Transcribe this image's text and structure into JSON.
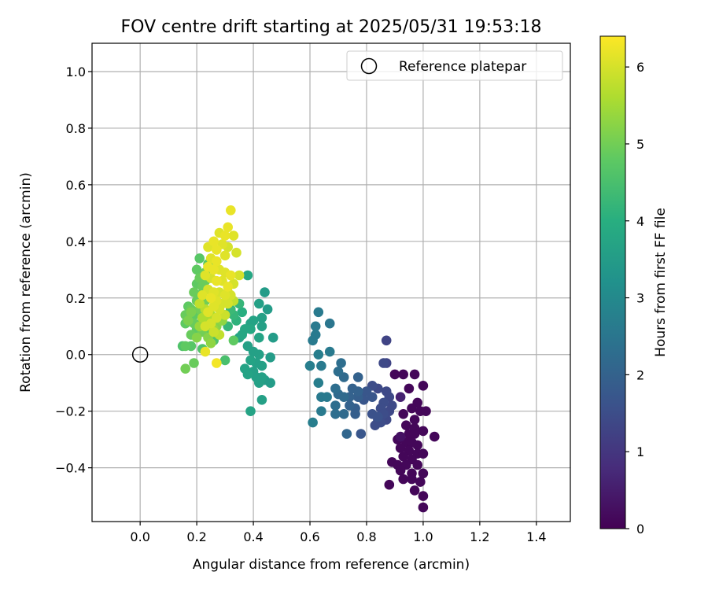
{
  "chart_data": {
    "type": "scatter",
    "title": "FOV centre drift starting at 2025/05/31 19:53:18",
    "xlabel": "Angular distance from reference (arcmin)",
    "ylabel": "Rotation from reference (arcmin)",
    "xlim": [
      -0.17,
      1.52
    ],
    "ylim": [
      -0.59,
      1.1
    ],
    "xticks": [
      0.0,
      0.2,
      0.4,
      0.6,
      0.8,
      1.0,
      1.2,
      1.4
    ],
    "xtick_labels": [
      "0.0",
      "0.2",
      "0.4",
      "0.6",
      "0.8",
      "1.0",
      "1.2",
      "1.4"
    ],
    "yticks": [
      -0.4,
      -0.2,
      0.0,
      0.2,
      0.4,
      0.6,
      0.8,
      1.0
    ],
    "ytick_labels": [
      "−0.4",
      "−0.2",
      "0.0",
      "0.2",
      "0.4",
      "0.6",
      "0.8",
      "1.0"
    ],
    "grid": true,
    "legend": {
      "position": "top-right",
      "entries": [
        "Reference platepar"
      ]
    },
    "colorbar": {
      "label": "Hours from first FF file",
      "colormap": "viridis",
      "range": [
        0,
        6.4
      ],
      "ticks": [
        0,
        1,
        2,
        3,
        4,
        5,
        6
      ],
      "tick_labels": [
        "0",
        "1",
        "2",
        "3",
        "4",
        "5",
        "6"
      ]
    },
    "reference_point": {
      "x": 0.0,
      "y": 0.0,
      "label": "Reference platepar",
      "marker": "open-circle"
    },
    "colors": {
      "grid": "#b0b0b0",
      "axes": "#000000",
      "reference_marker": "#000000"
    },
    "points": [
      [
        0.9,
        -0.07,
        0.1
      ],
      [
        0.93,
        -0.07,
        0.1
      ],
      [
        0.97,
        -0.07,
        0.1
      ],
      [
        1.0,
        -0.11,
        0.1
      ],
      [
        0.95,
        -0.12,
        0.1
      ],
      [
        0.98,
        -0.17,
        0.1
      ],
      [
        0.96,
        -0.19,
        0.1
      ],
      [
        0.99,
        -0.2,
        0.1
      ],
      [
        1.01,
        -0.2,
        0.1
      ],
      [
        0.93,
        -0.21,
        0.1
      ],
      [
        0.97,
        -0.23,
        0.1
      ],
      [
        0.94,
        -0.25,
        0.1
      ],
      [
        0.97,
        -0.26,
        0.1
      ],
      [
        0.95,
        -0.28,
        0.1
      ],
      [
        0.97,
        -0.28,
        0.1
      ],
      [
        1.0,
        -0.27,
        0.1
      ],
      [
        1.04,
        -0.29,
        0.1
      ],
      [
        0.91,
        -0.3,
        0.1
      ],
      [
        0.94,
        -0.31,
        0.1
      ],
      [
        0.96,
        -0.31,
        0.1
      ],
      [
        0.98,
        -0.32,
        0.1
      ],
      [
        0.92,
        -0.33,
        0.1
      ],
      [
        0.95,
        -0.34,
        0.1
      ],
      [
        0.98,
        -0.35,
        0.1
      ],
      [
        1.0,
        -0.35,
        0.1
      ],
      [
        0.93,
        -0.36,
        0.1
      ],
      [
        0.96,
        -0.37,
        0.1
      ],
      [
        0.89,
        -0.38,
        0.1
      ],
      [
        0.91,
        -0.39,
        0.1
      ],
      [
        0.94,
        -0.39,
        0.1
      ],
      [
        0.98,
        -0.39,
        0.1
      ],
      [
        0.92,
        -0.41,
        0.1
      ],
      [
        0.96,
        -0.42,
        0.1
      ],
      [
        1.0,
        -0.42,
        0.1
      ],
      [
        0.93,
        -0.44,
        0.1
      ],
      [
        0.96,
        -0.44,
        0.1
      ],
      [
        0.99,
        -0.45,
        0.1
      ],
      [
        0.88,
        -0.46,
        0.1
      ],
      [
        0.97,
        -0.48,
        0.1
      ],
      [
        1.0,
        -0.5,
        0.1
      ],
      [
        1.0,
        -0.54,
        0.1
      ],
      [
        0.92,
        -0.15,
        0.6
      ],
      [
        0.92,
        -0.29,
        0.3
      ],
      [
        0.87,
        0.05,
        1.3
      ],
      [
        0.87,
        -0.03,
        1.3
      ],
      [
        0.86,
        -0.03,
        1.4
      ],
      [
        0.82,
        -0.11,
        1.5
      ],
      [
        0.84,
        -0.12,
        1.4
      ],
      [
        0.87,
        -0.13,
        1.4
      ],
      [
        0.88,
        -0.15,
        1.4
      ],
      [
        0.86,
        -0.17,
        1.5
      ],
      [
        0.89,
        -0.18,
        1.4
      ],
      [
        0.85,
        -0.19,
        1.5
      ],
      [
        0.88,
        -0.2,
        1.4
      ],
      [
        0.86,
        -0.21,
        1.5
      ],
      [
        0.84,
        -0.23,
        1.5
      ],
      [
        0.87,
        -0.23,
        1.4
      ],
      [
        0.85,
        -0.24,
        1.5
      ],
      [
        0.83,
        -0.25,
        1.5
      ],
      [
        0.8,
        -0.13,
        1.7
      ],
      [
        0.78,
        -0.15,
        1.7
      ],
      [
        0.82,
        -0.15,
        1.7
      ],
      [
        0.79,
        -0.16,
        1.7
      ],
      [
        0.82,
        -0.21,
        1.6
      ],
      [
        0.84,
        -0.22,
        1.6
      ],
      [
        0.78,
        -0.28,
        1.7
      ],
      [
        0.77,
        -0.08,
        2.0
      ],
      [
        0.75,
        -0.12,
        2.0
      ],
      [
        0.77,
        -0.13,
        2.0
      ],
      [
        0.74,
        -0.15,
        2.0
      ],
      [
        0.77,
        -0.15,
        1.9
      ],
      [
        0.74,
        -0.18,
        2.0
      ],
      [
        0.76,
        -0.19,
        1.9
      ],
      [
        0.76,
        -0.21,
        1.9
      ],
      [
        0.71,
        -0.03,
        2.3
      ],
      [
        0.7,
        -0.06,
        2.3
      ],
      [
        0.72,
        -0.08,
        2.2
      ],
      [
        0.69,
        -0.12,
        2.3
      ],
      [
        0.7,
        -0.14,
        2.2
      ],
      [
        0.72,
        -0.15,
        2.2
      ],
      [
        0.69,
        -0.18,
        2.3
      ],
      [
        0.72,
        -0.21,
        2.2
      ],
      [
        0.69,
        -0.21,
        2.3
      ],
      [
        0.73,
        -0.28,
        2.1
      ],
      [
        0.63,
        0.15,
        2.6
      ],
      [
        0.62,
        0.1,
        2.6
      ],
      [
        0.62,
        0.07,
        2.6
      ],
      [
        0.67,
        0.11,
        2.5
      ],
      [
        0.61,
        0.05,
        2.6
      ],
      [
        0.63,
        0.0,
        2.7
      ],
      [
        0.67,
        0.01,
        2.6
      ],
      [
        0.6,
        -0.04,
        2.7
      ],
      [
        0.64,
        -0.04,
        2.6
      ],
      [
        0.63,
        -0.1,
        2.7
      ],
      [
        0.64,
        -0.15,
        2.6
      ],
      [
        0.66,
        -0.15,
        2.6
      ],
      [
        0.64,
        -0.2,
        2.6
      ],
      [
        0.61,
        -0.24,
        2.7
      ],
      [
        0.35,
        0.06,
        3.7
      ],
      [
        0.38,
        0.03,
        3.6
      ],
      [
        0.4,
        0.01,
        3.6
      ],
      [
        0.42,
        0.0,
        3.6
      ],
      [
        0.39,
        -0.02,
        3.7
      ],
      [
        0.41,
        -0.03,
        3.6
      ],
      [
        0.43,
        -0.04,
        3.6
      ],
      [
        0.37,
        -0.05,
        3.7
      ],
      [
        0.4,
        -0.06,
        3.6
      ],
      [
        0.38,
        -0.07,
        3.7
      ],
      [
        0.41,
        -0.08,
        3.6
      ],
      [
        0.43,
        -0.08,
        3.6
      ],
      [
        0.42,
        -0.1,
        3.6
      ],
      [
        0.44,
        -0.09,
        3.5
      ],
      [
        0.46,
        -0.1,
        3.5
      ],
      [
        0.46,
        -0.01,
        3.5
      ],
      [
        0.47,
        0.06,
        3.5
      ],
      [
        0.44,
        0.22,
        3.5
      ],
      [
        0.45,
        0.16,
        3.5
      ],
      [
        0.43,
        0.13,
        3.6
      ],
      [
        0.42,
        0.18,
        3.6
      ],
      [
        0.42,
        0.06,
        3.7
      ],
      [
        0.43,
        0.1,
        3.6
      ],
      [
        0.39,
        0.11,
        3.7
      ],
      [
        0.38,
        0.28,
        3.8
      ],
      [
        0.39,
        0.09,
        3.8
      ],
      [
        0.4,
        0.12,
        3.7
      ],
      [
        0.37,
        0.09,
        3.8
      ],
      [
        0.36,
        0.07,
        3.8
      ],
      [
        0.39,
        -0.2,
        3.7
      ],
      [
        0.43,
        -0.16,
        3.6
      ],
      [
        0.36,
        0.15,
        4.0
      ],
      [
        0.33,
        0.14,
        4.2
      ],
      [
        0.34,
        0.12,
        4.1
      ],
      [
        0.32,
        0.16,
        4.3
      ],
      [
        0.35,
        0.18,
        4.2
      ],
      [
        0.3,
        0.14,
        4.3
      ],
      [
        0.28,
        0.12,
        4.4
      ],
      [
        0.31,
        0.1,
        4.2
      ],
      [
        0.33,
        0.05,
        4.8
      ],
      [
        0.26,
        0.05,
        4.6
      ],
      [
        0.22,
        0.02,
        4.6
      ],
      [
        0.19,
        -0.03,
        4.9
      ],
      [
        0.16,
        -0.05,
        5.0
      ],
      [
        0.16,
        0.03,
        4.8
      ],
      [
        0.18,
        0.03,
        4.7
      ],
      [
        0.15,
        0.03,
        4.6
      ],
      [
        0.18,
        0.07,
        4.9
      ],
      [
        0.2,
        0.09,
        4.8
      ],
      [
        0.23,
        0.09,
        4.7
      ],
      [
        0.16,
        0.11,
        4.8
      ],
      [
        0.19,
        0.11,
        4.9
      ],
      [
        0.22,
        0.12,
        4.7
      ],
      [
        0.16,
        0.14,
        4.9
      ],
      [
        0.19,
        0.14,
        4.8
      ],
      [
        0.22,
        0.14,
        4.9
      ],
      [
        0.18,
        0.16,
        4.9
      ],
      [
        0.21,
        0.16,
        5.0
      ],
      [
        0.17,
        0.17,
        4.8
      ],
      [
        0.2,
        0.19,
        4.9
      ],
      [
        0.23,
        0.19,
        5.0
      ],
      [
        0.21,
        0.21,
        4.8
      ],
      [
        0.19,
        0.22,
        4.9
      ],
      [
        0.22,
        0.24,
        4.9
      ],
      [
        0.2,
        0.25,
        4.8
      ],
      [
        0.23,
        0.26,
        4.9
      ],
      [
        0.21,
        0.27,
        4.9
      ],
      [
        0.23,
        0.29,
        4.9
      ],
      [
        0.2,
        0.3,
        4.8
      ],
      [
        0.24,
        0.32,
        4.7
      ],
      [
        0.21,
        0.34,
        4.7
      ],
      [
        0.3,
        -0.02,
        4.5
      ],
      [
        0.27,
        -0.03,
        6.3
      ],
      [
        0.23,
        0.01,
        6.2
      ],
      [
        0.32,
        0.51,
        6.2
      ],
      [
        0.31,
        0.45,
        6.2
      ],
      [
        0.3,
        0.42,
        6.2
      ],
      [
        0.28,
        0.43,
        6.1
      ],
      [
        0.33,
        0.42,
        6.1
      ],
      [
        0.26,
        0.4,
        6.2
      ],
      [
        0.29,
        0.39,
        6.1
      ],
      [
        0.31,
        0.38,
        6.0
      ],
      [
        0.24,
        0.38,
        6.1
      ],
      [
        0.27,
        0.37,
        6.2
      ],
      [
        0.34,
        0.36,
        6.0
      ],
      [
        0.3,
        0.35,
        6.1
      ],
      [
        0.25,
        0.34,
        6.1
      ],
      [
        0.27,
        0.33,
        6.2
      ],
      [
        0.24,
        0.31,
        6.2
      ],
      [
        0.26,
        0.3,
        6.2
      ],
      [
        0.28,
        0.3,
        6.1
      ],
      [
        0.3,
        0.29,
        6.1
      ],
      [
        0.32,
        0.28,
        6.2
      ],
      [
        0.35,
        0.28,
        6.0
      ],
      [
        0.23,
        0.28,
        6.1
      ],
      [
        0.25,
        0.27,
        6.0
      ],
      [
        0.27,
        0.26,
        6.2
      ],
      [
        0.29,
        0.26,
        6.1
      ],
      [
        0.33,
        0.25,
        6.0
      ],
      [
        0.31,
        0.24,
        6.2
      ],
      [
        0.24,
        0.23,
        6.0
      ],
      [
        0.26,
        0.22,
        6.1
      ],
      [
        0.28,
        0.22,
        6.0
      ],
      [
        0.3,
        0.21,
        6.1
      ],
      [
        0.32,
        0.21,
        6.0
      ],
      [
        0.22,
        0.21,
        6.1
      ],
      [
        0.25,
        0.2,
        6.2
      ],
      [
        0.27,
        0.19,
        6.1
      ],
      [
        0.29,
        0.18,
        6.0
      ],
      [
        0.31,
        0.18,
        6.0
      ],
      [
        0.26,
        0.17,
        6.1
      ],
      [
        0.28,
        0.16,
        6.0
      ],
      [
        0.24,
        0.15,
        6.1
      ],
      [
        0.3,
        0.14,
        5.9
      ],
      [
        0.27,
        0.13,
        6.0
      ],
      [
        0.25,
        0.11,
        6.0
      ],
      [
        0.23,
        0.1,
        6.0
      ],
      [
        0.26,
        0.08,
        5.9
      ],
      [
        0.28,
        0.07,
        5.8
      ],
      [
        0.31,
        0.22,
        5.9
      ],
      [
        0.33,
        0.19,
        5.8
      ],
      [
        0.21,
        0.18,
        5.8
      ],
      [
        0.23,
        0.16,
        5.7
      ],
      [
        0.25,
        0.14,
        5.6
      ],
      [
        0.22,
        0.13,
        5.6
      ],
      [
        0.24,
        0.12,
        5.5
      ],
      [
        0.21,
        0.1,
        5.4
      ],
      [
        0.26,
        0.09,
        5.4
      ],
      [
        0.29,
        0.12,
        5.3
      ],
      [
        0.27,
        0.1,
        5.2
      ],
      [
        0.24,
        0.06,
        5.2
      ],
      [
        0.25,
        0.04,
        5.3
      ],
      [
        0.2,
        0.06,
        5.2
      ],
      [
        0.22,
        0.08,
        5.0
      ],
      [
        0.17,
        0.12,
        5.1
      ],
      [
        0.18,
        0.15,
        5.1
      ]
    ]
  }
}
